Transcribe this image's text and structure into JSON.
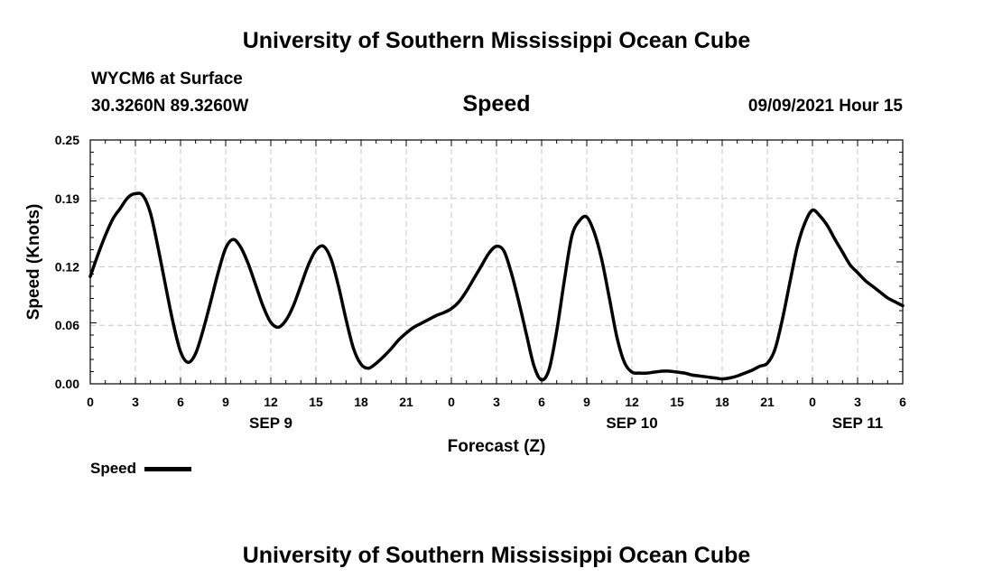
{
  "header": {
    "top_title": "University of Southern Mississippi Ocean Cube",
    "station_line": "WYCM6 at Surface",
    "coord_line": "30.3260N  89.3260W",
    "timestamp": "09/09/2021 Hour 15"
  },
  "footer": {
    "bottom_title": "University of Southern Mississippi Ocean Cube"
  },
  "legend": {
    "label": "Speed"
  },
  "chart_data": {
    "type": "line",
    "title": "Speed",
    "xlabel": "Forecast (Z)",
    "ylabel": "Speed (Knots)",
    "x_unit": "hours from 0Z SEP 9",
    "xlim": [
      0,
      54
    ],
    "ylim": [
      0,
      0.25
    ],
    "yticks": [
      "0.00",
      "0.06",
      "0.12",
      "0.19",
      "0.25"
    ],
    "xticks": [
      {
        "x": 0,
        "label": "0"
      },
      {
        "x": 3,
        "label": "3"
      },
      {
        "x": 6,
        "label": "6"
      },
      {
        "x": 9,
        "label": "9"
      },
      {
        "x": 12,
        "label": "12"
      },
      {
        "x": 15,
        "label": "15"
      },
      {
        "x": 18,
        "label": "18"
      },
      {
        "x": 21,
        "label": "21"
      },
      {
        "x": 24,
        "label": "0"
      },
      {
        "x": 27,
        "label": "3"
      },
      {
        "x": 30,
        "label": "6"
      },
      {
        "x": 33,
        "label": "9"
      },
      {
        "x": 36,
        "label": "12"
      },
      {
        "x": 39,
        "label": "15"
      },
      {
        "x": 42,
        "label": "18"
      },
      {
        "x": 45,
        "label": "21"
      },
      {
        "x": 48,
        "label": "0"
      },
      {
        "x": 51,
        "label": "3"
      },
      {
        "x": 54,
        "label": "6"
      }
    ],
    "date_labels": [
      {
        "x": 12,
        "label": "SEP 9"
      },
      {
        "x": 36,
        "label": "SEP 10"
      },
      {
        "x": 51,
        "label": "SEP 11"
      }
    ],
    "grid": true,
    "legend_position": "bottom-left",
    "series": [
      {
        "name": "Speed",
        "color": "#000000",
        "x": [
          0,
          0.5,
          1,
          1.5,
          2,
          2.5,
          3,
          3.5,
          4,
          4.5,
          5,
          5.5,
          6,
          6.5,
          7,
          7.5,
          8,
          8.5,
          9,
          9.5,
          10,
          10.5,
          11,
          11.5,
          12,
          12.5,
          13,
          13.5,
          14,
          14.5,
          15,
          15.5,
          16,
          16.5,
          17,
          17.5,
          18,
          18.5,
          19,
          19.5,
          20,
          20.5,
          21,
          21.5,
          22,
          22.5,
          23,
          23.5,
          24,
          24.5,
          25,
          25.5,
          26,
          26.5,
          27,
          27.5,
          28,
          28.5,
          29,
          29.5,
          30,
          30.5,
          31,
          31.5,
          32,
          32.5,
          33,
          33.5,
          34,
          34.5,
          35,
          35.5,
          36,
          36.5,
          37,
          37.5,
          38,
          38.5,
          39,
          39.5,
          40,
          40.5,
          41,
          41.5,
          42,
          42.5,
          43,
          43.5,
          44,
          44.5,
          45,
          45.5,
          46,
          46.5,
          47,
          47.5,
          48,
          48.5,
          49,
          49.5,
          50,
          50.5,
          51,
          51.5,
          52,
          52.5,
          53,
          53.5,
          54
        ],
        "values": [
          0.11,
          0.132,
          0.152,
          0.169,
          0.18,
          0.191,
          0.195,
          0.193,
          0.175,
          0.14,
          0.101,
          0.063,
          0.033,
          0.022,
          0.031,
          0.055,
          0.084,
          0.114,
          0.139,
          0.148,
          0.14,
          0.123,
          0.101,
          0.079,
          0.063,
          0.058,
          0.065,
          0.08,
          0.101,
          0.122,
          0.137,
          0.141,
          0.128,
          0.1,
          0.066,
          0.036,
          0.02,
          0.016,
          0.021,
          0.028,
          0.036,
          0.045,
          0.052,
          0.058,
          0.062,
          0.066,
          0.07,
          0.073,
          0.077,
          0.084,
          0.095,
          0.108,
          0.121,
          0.134,
          0.141,
          0.136,
          0.113,
          0.083,
          0.05,
          0.018,
          0.004,
          0.015,
          0.054,
          0.105,
          0.151,
          0.167,
          0.171,
          0.155,
          0.127,
          0.088,
          0.048,
          0.022,
          0.012,
          0.011,
          0.011,
          0.012,
          0.013,
          0.013,
          0.012,
          0.011,
          0.009,
          0.008,
          0.007,
          0.006,
          0.005,
          0.006,
          0.008,
          0.011,
          0.014,
          0.018,
          0.021,
          0.035,
          0.066,
          0.104,
          0.141,
          0.165,
          0.178,
          0.172,
          0.162,
          0.148,
          0.135,
          0.122,
          0.114,
          0.106,
          0.1,
          0.094,
          0.088,
          0.084,
          0.08
        ]
      }
    ]
  }
}
